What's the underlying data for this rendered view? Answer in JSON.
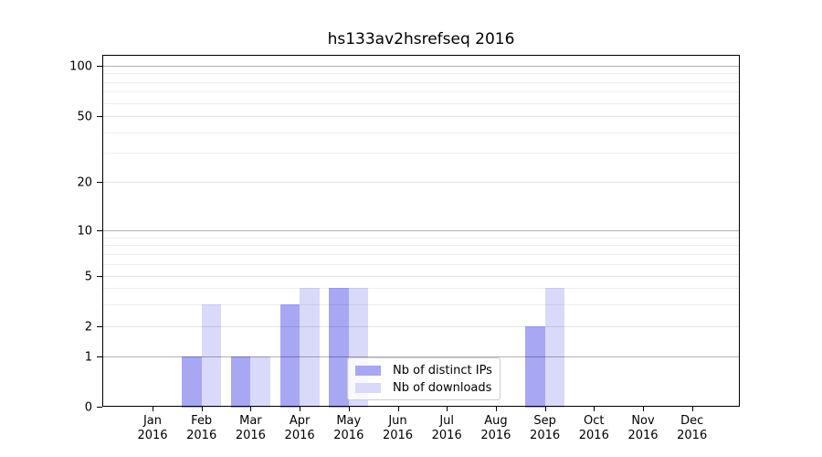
{
  "title": "hs133av2hsrefseq 2016",
  "chart_data": {
    "type": "bar",
    "title": "hs133av2hsrefseq 2016",
    "x_categories": [
      "Jan 2016",
      "Feb 2016",
      "Mar 2016",
      "Apr 2016",
      "May 2016",
      "Jun 2016",
      "Jul 2016",
      "Aug 2016",
      "Sep 2016",
      "Oct 2016",
      "Nov 2016",
      "Dec 2016"
    ],
    "series": [
      {
        "name": "Nb of distinct IPs",
        "color": "#a7a7f4",
        "values": [
          0,
          1,
          1,
          3,
          4,
          0,
          0,
          0,
          2,
          0,
          0,
          0
        ]
      },
      {
        "name": "Nb of downloads",
        "color": "#d9d9fa",
        "values": [
          0,
          3,
          1,
          4,
          4,
          0,
          0,
          0,
          4,
          0,
          0,
          0
        ]
      }
    ],
    "y_axis": {
      "scale": "log (symlog with 0 baseline)",
      "ticks": [
        0,
        1,
        2,
        5,
        10,
        20,
        50,
        100
      ],
      "tick_labels": [
        "0",
        "1",
        "2",
        "5",
        "10",
        "20",
        "50",
        "100"
      ],
      "major_gridlines": [
        1,
        10,
        100
      ],
      "sub_gridlines": [
        2,
        5,
        20,
        50
      ],
      "minor_gridlines": [
        3,
        4,
        6,
        7,
        8,
        9,
        30,
        40,
        60,
        70,
        80,
        90
      ],
      "range": [
        0,
        115
      ]
    },
    "legend": {
      "entries": [
        "Nb of distinct IPs",
        "Nb of downloads"
      ],
      "position": "lower center inside plot"
    },
    "grid": true
  }
}
